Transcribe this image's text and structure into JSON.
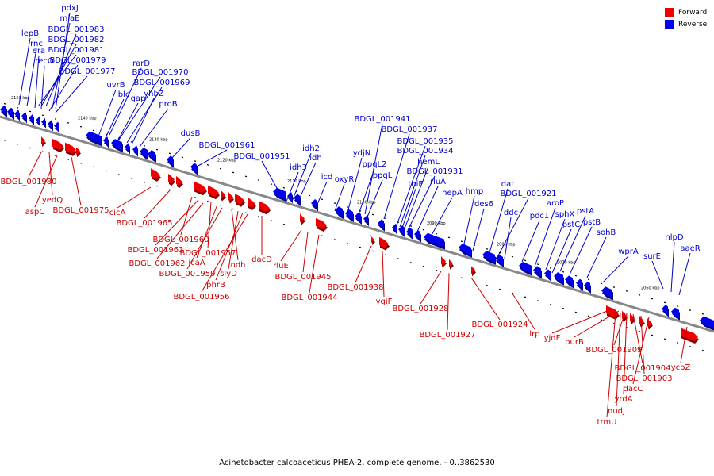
{
  "caption": "Acinetobacter calcoaceticus PHEA-2, complete genome. - 0..3862530",
  "legend": [
    {
      "label": "Forward",
      "color": "#ee0000"
    },
    {
      "label": "Reverse",
      "color": "#0000ee"
    }
  ],
  "colors": {
    "forward": "#ee0000",
    "reverse": "#0000ee",
    "backbone": "#888888"
  },
  "ticks": [
    "2150 kbp",
    "2140 kbp",
    "2130 kbp",
    "2120 kbp",
    "2110 kbp",
    "2100 kbp",
    "2090 kbp",
    "2080 kbp",
    "2070 kbp",
    "2060 kbp"
  ],
  "reverse_labels": [
    "pdxJ",
    "miaE",
    "lepB",
    "BDGL_001983",
    "rnc",
    "BDGL_001982",
    "era",
    "BDGL_001981",
    "recO",
    "BDGL_001979",
    "BDGL_001977",
    "rarD",
    "uvrB",
    "BDGL_001970",
    "blc",
    "BDGL_001969",
    "gap",
    "yhbZ",
    "proB",
    "dusB",
    "BDGL_001961",
    "BDGL_001951",
    "idh2",
    "idh3",
    "idh",
    "icd",
    "oxyR",
    "BDGL_001941",
    "BDGL_001937",
    "ydjN",
    "ppqL2",
    "ppqL",
    "BDGL_001935",
    "BDGL_001934",
    "hemL",
    "BDGL_001931",
    "thiE",
    "rluA",
    "hepA",
    "hmp",
    "des6",
    "dat",
    "BDGL_001921",
    "ddc",
    "pdc1",
    "aroP",
    "sphX",
    "pstA",
    "pstC",
    "pstB",
    "sohB",
    "wprA",
    "surE",
    "nlpD",
    "aaeR"
  ],
  "forward_labels": [
    "BDGL_001980",
    "yedQ",
    "aspC",
    "BDGL_001975",
    "cicA",
    "BDGL_001965",
    "BDGL_001960",
    "BDGL_001963",
    "BDGL_001957",
    "BDGL_001962",
    "icaA",
    "BDGL_001959",
    "ndh",
    "slyD",
    "phrB",
    "BDGL_001956",
    "dacD",
    "rluE",
    "BDGL_001945",
    "BDGL_001944",
    "BDGL_001938",
    "ygiF",
    "BDGL_001928",
    "BDGL_001927",
    "BDGL_001924",
    "lrp",
    "yjdF",
    "purB",
    "BDGL_001909",
    "BDGL_001904",
    "BDGL_001903",
    "dacC",
    "yrdA",
    "nudJ",
    "trmU",
    "ycbZ"
  ]
}
